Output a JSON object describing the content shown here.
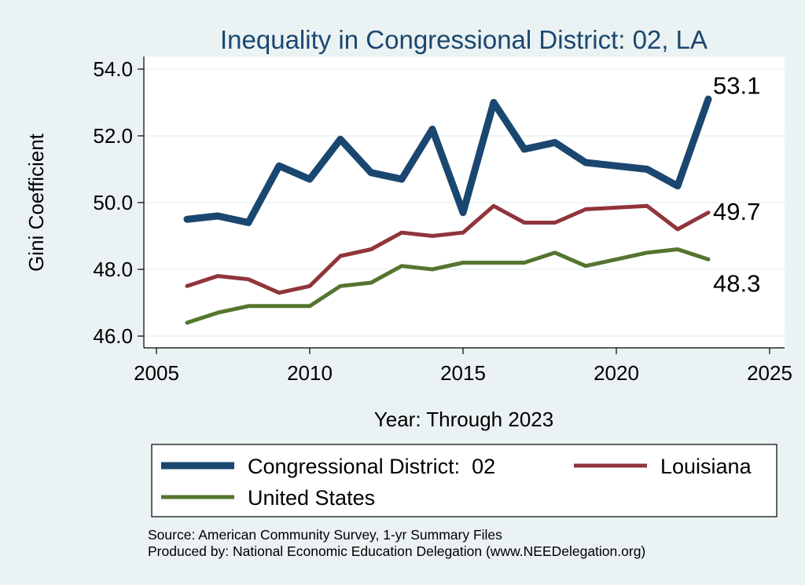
{
  "chart_data": {
    "type": "line",
    "title": "Inequality in Congressional District:  02, LA",
    "xlabel": "Year: Through 2023",
    "ylabel": "Gini Coefficient",
    "xlim": [
      2005,
      2025
    ],
    "ylim": [
      46.0,
      54.0
    ],
    "xticks": [
      "2005",
      "2010",
      "2015",
      "2020",
      "2025"
    ],
    "yticks": [
      "46.0",
      "48.0",
      "50.0",
      "52.0",
      "54.0"
    ],
    "grid": true,
    "legend_position": "bottom",
    "series": [
      {
        "name": "Congressional District:  02",
        "color": "#1a476f",
        "end_label": "53.1",
        "x": [
          2006,
          2007,
          2008,
          2009,
          2010,
          2011,
          2012,
          2013,
          2014,
          2015,
          2016,
          2017,
          2018,
          2019,
          2021,
          2022,
          2023
        ],
        "values": [
          49.5,
          49.6,
          49.4,
          51.1,
          50.7,
          51.9,
          50.9,
          50.7,
          52.2,
          49.7,
          53.0,
          51.6,
          51.8,
          51.2,
          51.0,
          50.5,
          53.1
        ]
      },
      {
        "name": "Louisiana",
        "color": "#90353b",
        "end_label": "49.7",
        "x": [
          2006,
          2007,
          2008,
          2009,
          2010,
          2011,
          2012,
          2013,
          2014,
          2015,
          2016,
          2017,
          2018,
          2019,
          2021,
          2022,
          2023
        ],
        "values": [
          47.5,
          47.8,
          47.7,
          47.3,
          47.5,
          48.4,
          48.6,
          49.1,
          49.0,
          49.1,
          49.9,
          49.4,
          49.4,
          49.8,
          49.9,
          49.2,
          49.7
        ]
      },
      {
        "name": "United States",
        "color": "#55752f",
        "end_label": "48.3",
        "x": [
          2006,
          2007,
          2008,
          2009,
          2010,
          2011,
          2012,
          2013,
          2014,
          2015,
          2016,
          2017,
          2018,
          2019,
          2021,
          2022,
          2023
        ],
        "values": [
          46.4,
          46.7,
          46.9,
          46.9,
          46.9,
          47.5,
          47.6,
          48.1,
          48.0,
          48.2,
          48.2,
          48.2,
          48.5,
          48.1,
          48.5,
          48.6,
          48.3
        ]
      }
    ],
    "source_lines": [
      "Source: American Community Survey, 1-yr Summary Files",
      "Produced by: National Economic Education Delegation (www.NEEDelegation.org)"
    ]
  }
}
